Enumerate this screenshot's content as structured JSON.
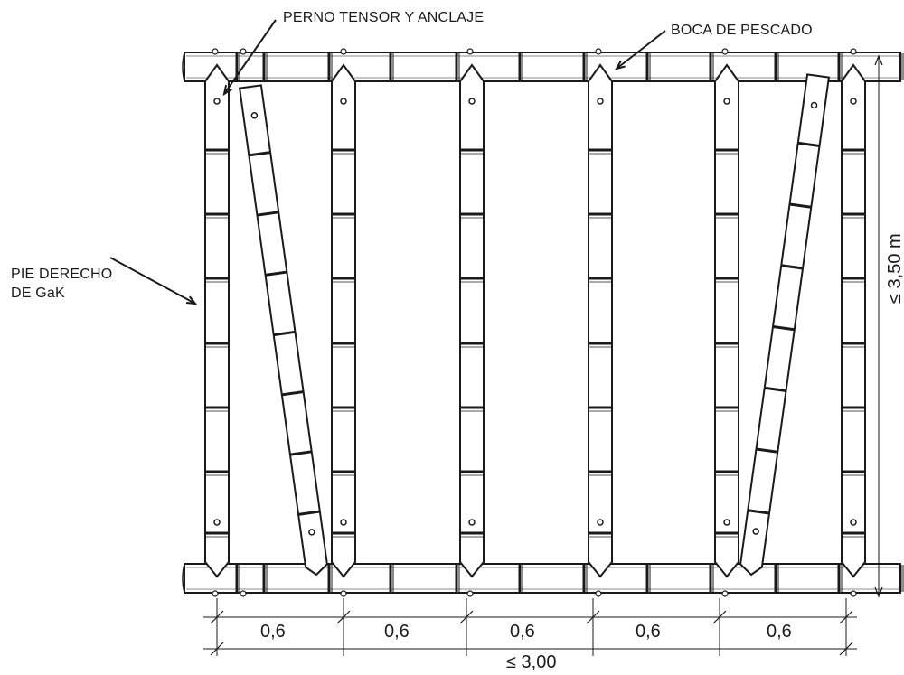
{
  "labels": {
    "perno": "PERNO TENSOR Y ANCLAJE",
    "boca": "BOCA DE PESCADO",
    "pie_line1": "PIE DERECHO",
    "pie_line2": "DE GaK",
    "height": "≤ 3,50 m",
    "total_width": "≤ 3,00"
  },
  "spans": [
    "0,6",
    "0,6",
    "0,6",
    "0,6",
    "0,6"
  ],
  "colors": {
    "line": "#1a1a1a",
    "fill": "#ffffff"
  }
}
